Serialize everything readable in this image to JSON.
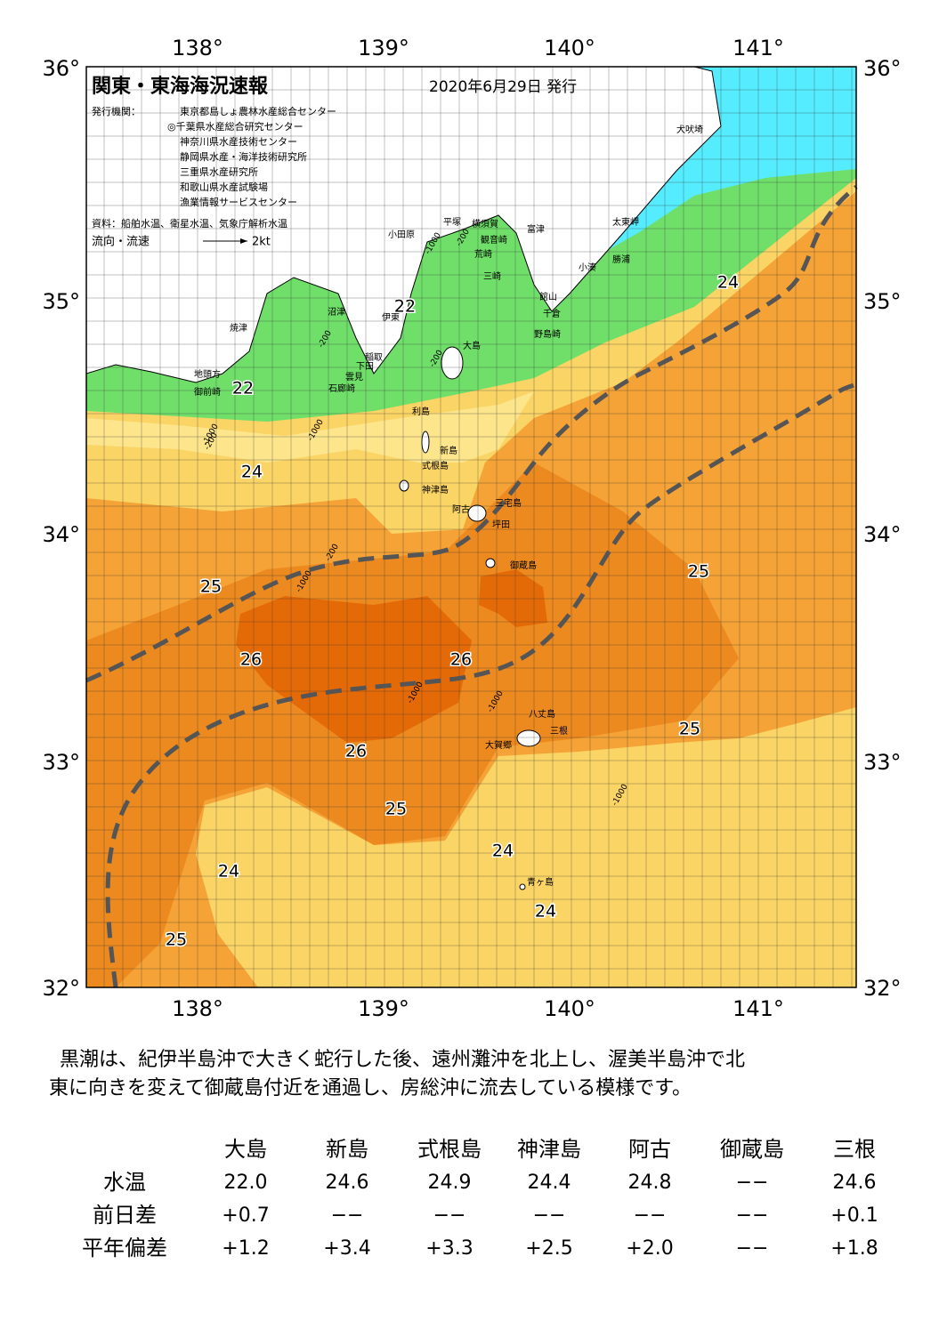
{
  "map": {
    "title": "関東・東海海況速報",
    "date": "2020年6月29日 発行",
    "issuer_label": "発行機関：",
    "issuers": [
      "東京都島しょ農林水産総合センター",
      "◎千葉県水産総合研究センター",
      "神奈川県水産技術センター",
      "静岡県水産・海洋技術研究所",
      "三重県水産研究所",
      "和歌山県水産試験場",
      "漁業情報サービスセンター"
    ],
    "source": "資料：船舶水温、衛星水温、気象庁解析水温",
    "current_label": "流向・流速",
    "current_scale": "2kt",
    "lon_labels": [
      "138°",
      "139°",
      "140°",
      "141°"
    ],
    "lat_labels": [
      "36°",
      "35°",
      "34°",
      "33°",
      "32°"
    ],
    "place_names": [
      "犬吠埼",
      "太東岬",
      "勝浦",
      "小湊",
      "富津",
      "横須賀",
      "観音崎",
      "平塚",
      "小田原",
      "荒崎",
      "三崎",
      "館山",
      "千倉",
      "野島崎",
      "沼津",
      "伊東",
      "焼津",
      "稲取",
      "下田",
      "雲見",
      "石廊崎",
      "地頭方",
      "御前崎",
      "大島",
      "利島",
      "新島",
      "式根島",
      "神津島",
      "三宅島",
      "阿古",
      "坪田",
      "御蔵島",
      "八丈島",
      "三根",
      "大賀郷",
      "青ヶ島"
    ],
    "isotherm_labels": [
      "22",
      "24",
      "22",
      "24",
      "25",
      "25",
      "26",
      "26",
      "25",
      "26",
      "25",
      "24",
      "24",
      "24",
      "25"
    ],
    "depth_labels": [
      "-200",
      "-1000",
      "-200",
      "-1000",
      "-200",
      "-1000",
      "-200",
      "-1000",
      "-200",
      "-1000",
      "-1000",
      "-1000"
    ]
  },
  "description": {
    "lines": [
      "黒潮は、紀伊半島沖で大きく蛇行した後、遠州灘沖を北上し、渥美半島沖で北",
      "東に向きを変えて御蔵島付近を通過し、房総沖に流去している模様です。"
    ]
  },
  "table": {
    "columns": [
      "大島",
      "新島",
      "式根島",
      "神津島",
      "阿古",
      "御蔵島",
      "三根"
    ],
    "rows": [
      {
        "label": "水温",
        "cells": [
          "22.0",
          "24.6",
          "24.9",
          "24.4",
          "24.8",
          "−−",
          "24.6"
        ]
      },
      {
        "label": "前日差",
        "cells": [
          "+0.7",
          "−−",
          "−−",
          "−−",
          "−−",
          "−−",
          "+0.1"
        ]
      },
      {
        "label": "平年偏差",
        "cells": [
          "+1.2",
          "+3.4",
          "+3.3",
          "+2.5",
          "+2.0",
          "−−",
          "+1.8"
        ]
      }
    ]
  }
}
